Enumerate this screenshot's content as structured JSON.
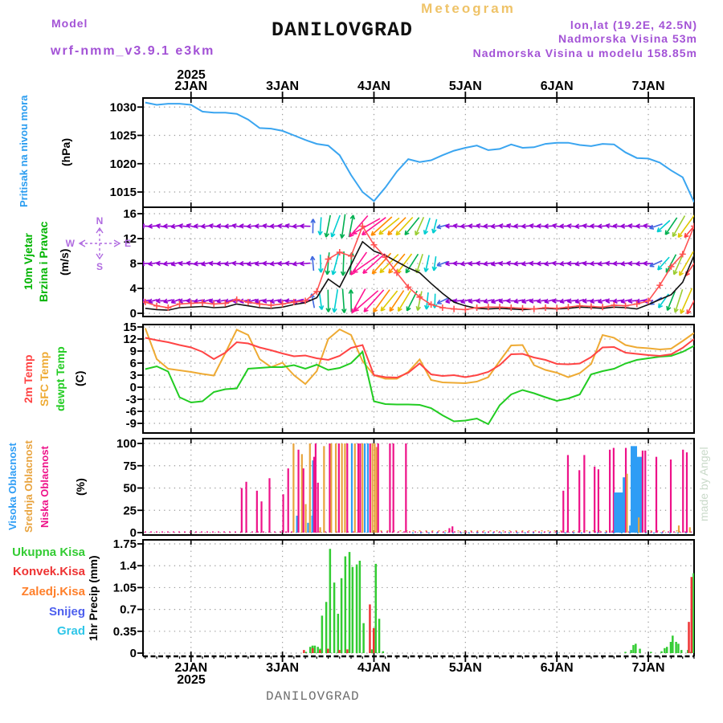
{
  "header": {
    "meteogram_label": "Meteogram",
    "model_label": "Model",
    "model_name": "wrf-nmm_v3.9.1 e3km",
    "station_title": "DANILOVGRAD",
    "lonlat": "lon,lat (19.2E, 42.5N)",
    "station_elevation": "Nadmorska Visina 53m",
    "model_elevation": "Nadmorska Visina u modelu 158.85m"
  },
  "footer": {
    "station_name": "DANILOVGRAD",
    "year": "2025"
  },
  "watermark": "made by Angel",
  "axis": {
    "year_top": "2025",
    "hours_total": 144,
    "days": [
      {
        "label": "2JAN",
        "t": 12
      },
      {
        "label": "3JAN",
        "t": 36
      },
      {
        "label": "4JAN",
        "t": 60
      },
      {
        "label": "5JAN",
        "t": 84
      },
      {
        "label": "6JAN",
        "t": 108
      },
      {
        "label": "7JAN",
        "t": 132
      }
    ]
  },
  "colors": {
    "pressure_line": "#3aa5f0",
    "pressure_label": "#2b9df0",
    "wind_label": "#00b400",
    "compass": "#b06be0",
    "speed_line": "#ff5252",
    "gust_line": "#111111",
    "t2m": "#ff4444",
    "sfc": "#eeaa33",
    "dew": "#22cc22",
    "visoka": "#2e9df5",
    "srednja": "#e8a33d",
    "niska": "#ee1289",
    "ukupna": "#33cc33",
    "konvek": "#ee3333",
    "zaledj": "#ff7f2a",
    "snijeg": "#4d5fee",
    "grad": "#2fc6e8",
    "title_yellow": "#efc368",
    "purple": "#a352d6",
    "gray_serif": "#6e6e6e",
    "watermark": "#c9d9c9",
    "grid": "#9a9a9a",
    "arrow_palette": {
      "p": "#9400d3",
      "b": "#4169e1",
      "c": "#00ced1",
      "g": "#00b050",
      "yg": "#9acd32",
      "y": "#e0c800",
      "o": "#ff8c00",
      "m": "#ff1493",
      "r": "#ff4040"
    }
  },
  "chart_data": {
    "type": "meteogram",
    "t_step_hours": 3,
    "pressure": {
      "label": "Pritisak na nivou mora",
      "unit": "(hPa)",
      "yticks": [
        1030,
        1025,
        1020,
        1015
      ],
      "values": [
        1030.8,
        1030.4,
        1030.6,
        1030.6,
        1030.4,
        1029.2,
        1029.0,
        1029.0,
        1028.8,
        1027.8,
        1026.3,
        1026.2,
        1025.8,
        1025.0,
        1024.2,
        1023.5,
        1023.2,
        1021.5,
        1018.0,
        1015.0,
        1013.4,
        1015.8,
        1018.6,
        1020.8,
        1020.3,
        1020.6,
        1021.5,
        1022.3,
        1022.8,
        1023.2,
        1022.4,
        1022.6,
        1023.4,
        1022.8,
        1022.9,
        1023.5,
        1023.7,
        1023.7,
        1023.3,
        1023.1,
        1023.5,
        1023.4,
        1022.0,
        1021.0,
        1020.9,
        1020.2,
        1018.8,
        1017.6,
        1013.2
      ]
    },
    "wind": {
      "label_line1": "10m Vjetar",
      "label_line2": "Brzina i Pravac",
      "unit": "(m/s)",
      "compass": {
        "n": "N",
        "s": "S",
        "e": "E",
        "w": "W"
      },
      "yticks": [
        16,
        12,
        8,
        4,
        0
      ],
      "rows_mps": [
        14,
        8,
        2
      ],
      "speed": [
        1.8,
        1.2,
        0.9,
        1.5,
        1.6,
        1.7,
        1.5,
        1.6,
        2.2,
        1.8,
        1.5,
        1.3,
        1.5,
        1.8,
        2.0,
        3.5,
        8.7,
        9.8,
        9.2,
        14.0,
        11.0,
        9.0,
        6.5,
        4.2,
        2.6,
        1.4,
        0.9,
        0.7,
        0.6,
        0.9,
        1.0,
        1.0,
        0.9,
        0.8,
        0.7,
        0.9,
        0.8,
        1.0,
        1.2,
        1.1,
        1.0,
        1.3,
        1.2,
        1.5,
        2.0,
        4.5,
        7.5,
        9.5,
        14.0
      ],
      "gust": [
        0.8,
        0.6,
        0.5,
        0.9,
        1.0,
        1.1,
        0.9,
        1.0,
        1.5,
        1.2,
        0.9,
        0.8,
        1.0,
        1.4,
        1.7,
        2.5,
        5.5,
        4.2,
        7.8,
        11.5,
        10.0,
        9.3,
        8.3,
        7.3,
        6.5,
        4.8,
        3.2,
        1.8,
        1.2,
        0.8,
        0.7,
        0.8,
        0.7,
        0.6,
        0.7,
        0.8,
        0.7,
        0.8,
        1.0,
        0.9,
        0.8,
        1.0,
        0.9,
        0.7,
        1.4,
        2.2,
        3.0,
        5.0,
        9.3
      ],
      "arrows": {
        "t_step": 2,
        "angles": [
          183,
          190,
          176,
          187,
          195,
          180,
          172,
          186,
          192,
          178,
          184,
          190,
          175,
          183,
          191,
          186,
          178,
          188,
          182,
          176,
          190,
          184,
          95,
          272,
          265,
          255,
          268,
          85,
          235,
          215,
          222,
          228,
          225,
          230,
          233,
          237,
          252,
          258,
          262,
          200,
          185,
          178,
          190,
          183,
          176,
          188,
          192,
          180,
          174,
          186,
          190,
          178,
          183,
          189,
          175,
          187,
          181,
          192,
          178,
          184,
          190,
          176,
          182,
          188,
          180,
          186,
          179,
          205,
          228,
          242,
          246,
          240,
          236
        ],
        "speeds": [
          1.8,
          1.5,
          1.2,
          1.6,
          1.7,
          1.6,
          1.5,
          1.6,
          2.0,
          1.8,
          1.6,
          1.4,
          1.5,
          1.7,
          1.9,
          1.6,
          1.5,
          1.7,
          1.6,
          1.8,
          2.0,
          2.2,
          4.5,
          6.5,
          9,
          9.5,
          10,
          9,
          12,
          14,
          13,
          12,
          11,
          10.5,
          10,
          9,
          7.5,
          6,
          4.5,
          3,
          1.6,
          1.5,
          1.7,
          1.6,
          1.4,
          1.6,
          1.8,
          1.6,
          1.5,
          1.7,
          1.6,
          1.5,
          1.6,
          1.8,
          1.5,
          1.6,
          1.7,
          1.5,
          1.6,
          1.8,
          1.6,
          1.5,
          1.7,
          1.6,
          1.8,
          1.7,
          1.9,
          4,
          6,
          8,
          10,
          12,
          13
        ],
        "colors": [
          "p",
          "p",
          "p",
          "p",
          "p",
          "p",
          "p",
          "p",
          "p",
          "p",
          "p",
          "p",
          "p",
          "p",
          "p",
          "p",
          "p",
          "p",
          "p",
          "p",
          "p",
          "p",
          "b",
          "c",
          "g",
          "c",
          "g",
          "g",
          "m",
          "m",
          "m",
          "o",
          "y",
          "o",
          "y",
          "g",
          "yg",
          "c",
          "c",
          "b",
          "p",
          "p",
          "p",
          "p",
          "p",
          "p",
          "p",
          "p",
          "p",
          "p",
          "p",
          "p",
          "p",
          "p",
          "p",
          "p",
          "p",
          "p",
          "p",
          "p",
          "p",
          "p",
          "p",
          "p",
          "p",
          "p",
          "p",
          "b",
          "c",
          "g",
          "yg",
          "y",
          "r"
        ]
      }
    },
    "temperature": {
      "labels": [
        "2m Temp",
        "SFC Temp",
        "dewpt Temp"
      ],
      "unit": "(C)",
      "yticks": [
        15,
        12,
        9,
        6,
        3,
        0,
        -3,
        -6,
        -9
      ],
      "t2m": [
        12.3,
        11.7,
        11.2,
        10.5,
        9.9,
        8.8,
        7.0,
        8.6,
        11.2,
        10.9,
        9.9,
        9.2,
        8.4,
        7.7,
        7.9,
        7.2,
        6.8,
        7.8,
        9.8,
        10.5,
        3.0,
        2.5,
        2.4,
        3.6,
        5.9,
        3.2,
        2.8,
        3.0,
        2.5,
        3.0,
        3.8,
        5.5,
        8.2,
        8.3,
        7.4,
        6.8,
        5.8,
        5.7,
        5.9,
        7.5,
        9.9,
        10.0,
        8.6,
        8.3,
        8.0,
        7.8,
        8.2,
        9.8,
        12.0
      ],
      "sfc": [
        14.7,
        7.0,
        4.6,
        4.2,
        3.8,
        3.3,
        2.9,
        8.5,
        14.3,
        13.0,
        7.0,
        5.0,
        6.1,
        3.0,
        0.8,
        4.0,
        12.0,
        14.4,
        13.0,
        6.5,
        3.0,
        2.1,
        2.1,
        3.8,
        6.9,
        1.8,
        1.2,
        1.1,
        1.0,
        1.4,
        2.5,
        6.5,
        10.4,
        10.5,
        5.5,
        4.3,
        3.6,
        2.5,
        3.5,
        5.8,
        13.0,
        12.3,
        10.5,
        9.9,
        9.7,
        9.4,
        9.6,
        11.5,
        13.5
      ],
      "dew": [
        4.5,
        5.2,
        3.9,
        -2.5,
        -3.8,
        -3.5,
        -1.2,
        -0.5,
        -0.3,
        4.6,
        4.8,
        5.0,
        5.0,
        5.5,
        4.6,
        5.6,
        4.3,
        4.8,
        6.0,
        8.8,
        -3.5,
        -4.2,
        -4.3,
        -4.3,
        -4.4,
        -5.2,
        -7.0,
        -8.5,
        -8.3,
        -7.8,
        -9.2,
        -4.5,
        -1.8,
        -0.7,
        -1.5,
        -2.5,
        -3.4,
        -2.8,
        -1.8,
        3.2,
        4.0,
        4.6,
        5.9,
        6.8,
        7.2,
        7.6,
        7.8,
        8.8,
        10.3
      ]
    },
    "cloud": {
      "labels": [
        "Visoka Oblacnost",
        "Srednja Oblacnost",
        "Niska Oblacnost"
      ],
      "unit": "(%)",
      "yticks": [
        100,
        75,
        50,
        25,
        0
      ],
      "bars": [
        [
          25.3,
          50,
          "n"
        ],
        [
          26.5,
          57,
          "n"
        ],
        [
          29.3,
          47,
          "n"
        ],
        [
          30.5,
          35,
          "n"
        ],
        [
          32.6,
          61,
          "n"
        ],
        [
          36.2,
          43,
          "n"
        ],
        [
          37.5,
          72,
          "n"
        ],
        [
          38.9,
          100,
          "s"
        ],
        [
          39.8,
          19,
          "v"
        ],
        [
          40.2,
          93,
          "n"
        ],
        [
          41.1,
          88,
          "s"
        ],
        [
          41.5,
          72,
          "n"
        ],
        [
          42.1,
          32,
          "s"
        ],
        [
          42.7,
          11,
          "v"
        ],
        [
          43.2,
          100,
          "s"
        ],
        [
          43.8,
          19,
          "v"
        ],
        [
          44.0,
          81,
          "v"
        ],
        [
          44.3,
          85,
          "n"
        ],
        [
          44.7,
          100,
          "n"
        ],
        [
          45.3,
          56,
          "n"
        ],
        [
          45.9,
          6,
          "s"
        ],
        [
          46.9,
          97,
          "s"
        ],
        [
          48.4,
          100,
          "n"
        ],
        [
          48.8,
          100,
          "s"
        ],
        [
          50.0,
          100,
          "s"
        ],
        [
          50.8,
          100,
          "n"
        ],
        [
          51.6,
          100,
          "s"
        ],
        [
          52.4,
          100,
          "s"
        ],
        [
          53.0,
          100,
          "n"
        ],
        [
          54.2,
          100,
          "v"
        ],
        [
          55.0,
          100,
          "s"
        ],
        [
          55.9,
          100,
          "n"
        ],
        [
          56.4,
          100,
          "n"
        ],
        [
          57.0,
          100,
          "s"
        ],
        [
          57.6,
          100,
          "v"
        ],
        [
          58.4,
          100,
          "v"
        ],
        [
          59.0,
          100,
          "n"
        ],
        [
          59.6,
          100,
          "s"
        ],
        [
          60.2,
          100,
          "s"
        ],
        [
          60.7,
          96,
          "s"
        ],
        [
          61.1,
          100,
          "n"
        ],
        [
          64.2,
          100,
          "n"
        ],
        [
          65.1,
          100,
          "n"
        ],
        [
          68.4,
          100,
          "n"
        ],
        [
          79.8,
          5,
          "n"
        ],
        [
          80.6,
          7,
          "n"
        ],
        [
          109.7,
          47,
          "n"
        ],
        [
          110.9,
          87,
          "n"
        ],
        [
          113.9,
          70,
          "n"
        ],
        [
          115.2,
          87,
          "n"
        ],
        [
          117.9,
          74,
          "n"
        ],
        [
          118.9,
          71,
          "n"
        ],
        [
          121.9,
          93,
          "n"
        ],
        [
          122.9,
          95,
          "n"
        ],
        [
          123.6,
          45,
          "v",
          6
        ],
        [
          124.8,
          45,
          "v",
          6
        ],
        [
          125.7,
          62,
          "v",
          4
        ],
        [
          126.1,
          95,
          "n"
        ],
        [
          126.4,
          66,
          "s"
        ],
        [
          127.2,
          8,
          "v"
        ],
        [
          128.2,
          97,
          "v",
          8
        ],
        [
          129.8,
          85,
          "v",
          8
        ],
        [
          129.5,
          17,
          "s"
        ],
        [
          130.5,
          92,
          "n"
        ],
        [
          131.2,
          92,
          "n"
        ],
        [
          134.1,
          85,
          "n"
        ],
        [
          137.9,
          82,
          "n"
        ],
        [
          140.0,
          8,
          "s"
        ],
        [
          141.1,
          93,
          "n"
        ],
        [
          142.1,
          90,
          "n"
        ],
        [
          142.9,
          6,
          "s"
        ]
      ]
    },
    "precip": {
      "labels": [
        "Ukupna Kisa",
        "Konvek.Kisa",
        "Zaledj.Kisa",
        "Snijeg",
        "Grad"
      ],
      "unit": "1hr Precip (mm)",
      "yticks": [
        "1.75",
        "1.4",
        "1.05",
        "0.7",
        "0.35",
        "0"
      ],
      "bars": [
        [
          41.9,
          0.02,
          0.05
        ],
        [
          43.0,
          0.1,
          0
        ],
        [
          43.6,
          0.12,
          0
        ],
        [
          44.2,
          0.12,
          0.08
        ],
        [
          45.0,
          0.1,
          0
        ],
        [
          45.6,
          0.07,
          0
        ],
        [
          46.1,
          0.6,
          0.05
        ],
        [
          47.2,
          0.82,
          0
        ],
        [
          48.2,
          1.67,
          0.07
        ],
        [
          49.3,
          1.13,
          0
        ],
        [
          50.3,
          0.63,
          0
        ],
        [
          51.2,
          1.2,
          0.05
        ],
        [
          52.2,
          1.55,
          0
        ],
        [
          53.3,
          1.62,
          0.06
        ],
        [
          54.1,
          1.38,
          0
        ],
        [
          55.2,
          1.42,
          0
        ],
        [
          56.0,
          1.48,
          0
        ],
        [
          57.0,
          0.48,
          0
        ],
        [
          59.2,
          0.06,
          0.78
        ],
        [
          60.2,
          1.43,
          0.4
        ],
        [
          61.1,
          0.55,
          0
        ],
        [
          62.1,
          0.03,
          0
        ],
        [
          125.7,
          0.02,
          0
        ],
        [
          127.2,
          0.05,
          0
        ],
        [
          127.8,
          0.13,
          0
        ],
        [
          128.4,
          0.15,
          0
        ],
        [
          129.5,
          0.07,
          0
        ],
        [
          132.4,
          0.02,
          0
        ],
        [
          135.2,
          0.03,
          0
        ],
        [
          136.0,
          0.08,
          0
        ],
        [
          136.6,
          0.1,
          0
        ],
        [
          137.6,
          0.18,
          0
        ],
        [
          138.1,
          0.28,
          0
        ],
        [
          139.0,
          0.18,
          0
        ],
        [
          139.6,
          0.15,
          0
        ],
        [
          140.4,
          0.05,
          0
        ],
        [
          142.1,
          0.05,
          0
        ],
        [
          142.9,
          0.02,
          0.5
        ],
        [
          143.6,
          1.28,
          1.22
        ]
      ]
    }
  }
}
